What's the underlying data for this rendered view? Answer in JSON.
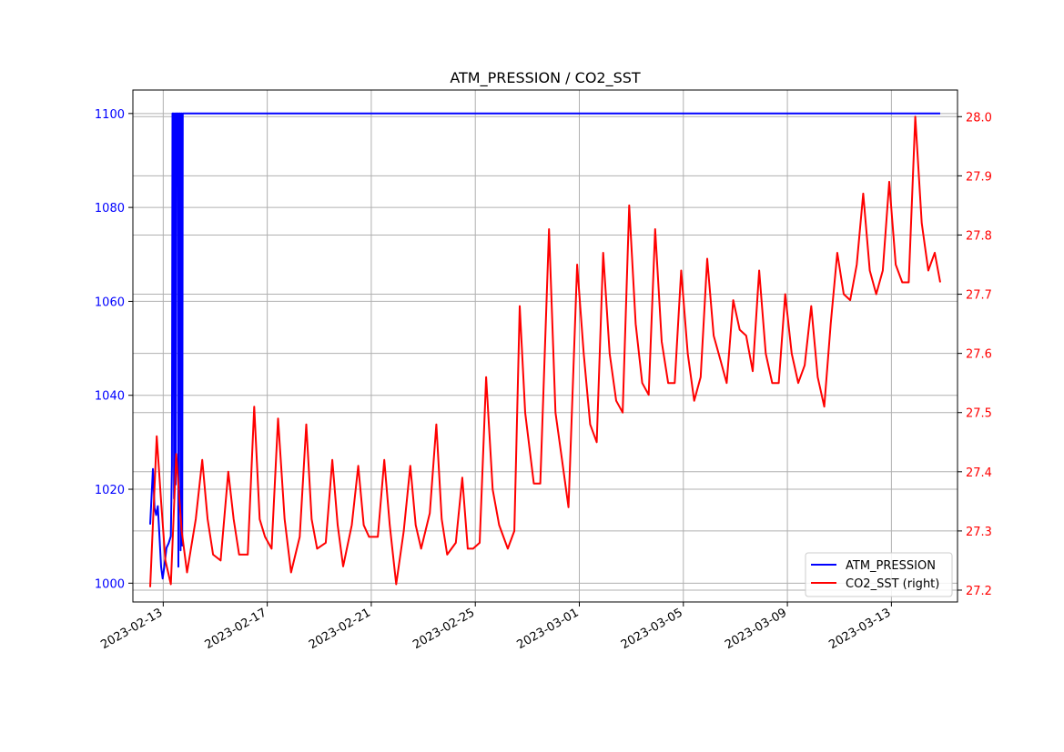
{
  "chart_data": {
    "type": "line",
    "title": "ATM_PRESSION / CO2_SST",
    "xlabel": "",
    "x_ticks": [
      "2023-02-13",
      "2023-02-17",
      "2023-02-21",
      "2023-02-25",
      "2023-03-01",
      "2023-03-05",
      "2023-03-09",
      "2023-03-13"
    ],
    "xlim": [
      "2023-02-11T20:00",
      "2023-03-15T13:00"
    ],
    "grid": true,
    "legend_position": "lower-right",
    "left_axis": {
      "ylim": [
        996,
        1105
      ],
      "ticks": [
        "1000",
        "1020",
        "1040",
        "1060",
        "1080",
        "1100"
      ],
      "color": "#0000ff"
    },
    "right_axis": {
      "ylim": [
        27.18,
        28.045
      ],
      "ticks": [
        "27.2",
        "27.3",
        "27.4",
        "27.5",
        "27.6",
        "27.7",
        "27.8",
        "27.9",
        "28.0"
      ],
      "color": "#ff0000"
    },
    "series": [
      {
        "name": "ATM_PRESSION",
        "axis": "left",
        "color": "#0000ff",
        "points": [
          [
            "2023-02-12T12:00",
            1012.5
          ],
          [
            "2023-02-12T14:30",
            1024.3
          ],
          [
            "2023-02-12T16:00",
            1016.0
          ],
          [
            "2023-02-12T17:30",
            1014.5
          ],
          [
            "2023-02-12T19:00",
            1016.4
          ],
          [
            "2023-02-12T20:30",
            1010.0
          ],
          [
            "2023-02-12T22:00",
            1003.5
          ],
          [
            "2023-02-12T23:30",
            1001.0
          ],
          [
            "2023-02-13T01:00",
            1003.5
          ],
          [
            "2023-02-13T03:00",
            1007.5
          ],
          [
            "2023-02-13T05:00",
            1008.5
          ],
          [
            "2023-02-13T07:00",
            1010.0
          ],
          [
            "2023-02-13T08:00",
            1025.0
          ],
          [
            "2023-02-13T08:30",
            1100.0
          ],
          [
            "2023-02-13T09:30",
            1100.0
          ],
          [
            "2023-02-13T10:00",
            1018.0
          ],
          [
            "2023-02-13T10:30",
            1100.0
          ],
          [
            "2023-02-13T11:00",
            1100.0
          ],
          [
            "2023-02-13T11:30",
            1021.0
          ],
          [
            "2023-02-13T12:00",
            1100.0
          ],
          [
            "2023-02-13T13:30",
            1100.0
          ],
          [
            "2023-02-13T14:00",
            1003.5
          ],
          [
            "2023-02-13T14:30",
            1100.0
          ],
          [
            "2023-02-13T15:30",
            1100.0
          ],
          [
            "2023-02-13T16:00",
            1007.0
          ],
          [
            "2023-02-13T16:30",
            1100.0
          ],
          [
            "2023-02-13T17:00",
            1100.0
          ],
          [
            "2023-02-13T17:30",
            1008.0
          ],
          [
            "2023-02-13T18:00",
            1100.0
          ],
          [
            "2023-03-14T21:00",
            1100.0
          ]
        ]
      },
      {
        "name": "CO2_SST (right)",
        "axis": "right",
        "color": "#ff0000",
        "points": [
          [
            "2023-02-12T12:00",
            27.205
          ],
          [
            "2023-02-12T18:00",
            27.46
          ],
          [
            "2023-02-12T22:00",
            27.35
          ],
          [
            "2023-02-13T02:00",
            27.25
          ],
          [
            "2023-02-13T07:00",
            27.21
          ],
          [
            "2023-02-13T12:00",
            27.43
          ],
          [
            "2023-02-13T17:00",
            27.3
          ],
          [
            "2023-02-13T22:00",
            27.23
          ],
          [
            "2023-02-14T06:00",
            27.32
          ],
          [
            "2023-02-14T12:00",
            27.42
          ],
          [
            "2023-02-14T17:00",
            27.32
          ],
          [
            "2023-02-14T22:00",
            27.26
          ],
          [
            "2023-02-15T05:00",
            27.25
          ],
          [
            "2023-02-15T12:00",
            27.4
          ],
          [
            "2023-02-15T17:00",
            27.32
          ],
          [
            "2023-02-15T22:00",
            27.26
          ],
          [
            "2023-02-16T06:00",
            27.26
          ],
          [
            "2023-02-16T12:00",
            27.51
          ],
          [
            "2023-02-16T17:00",
            27.32
          ],
          [
            "2023-02-16T22:00",
            27.29
          ],
          [
            "2023-02-17T04:00",
            27.27
          ],
          [
            "2023-02-17T10:00",
            27.49
          ],
          [
            "2023-02-17T16:00",
            27.32
          ],
          [
            "2023-02-17T22:00",
            27.23
          ],
          [
            "2023-02-18T06:00",
            27.29
          ],
          [
            "2023-02-18T12:00",
            27.48
          ],
          [
            "2023-02-18T17:00",
            27.32
          ],
          [
            "2023-02-18T22:00",
            27.27
          ],
          [
            "2023-02-19T06:00",
            27.28
          ],
          [
            "2023-02-19T12:00",
            27.42
          ],
          [
            "2023-02-19T17:00",
            27.31
          ],
          [
            "2023-02-19T22:00",
            27.24
          ],
          [
            "2023-02-20T06:00",
            27.31
          ],
          [
            "2023-02-20T12:00",
            27.41
          ],
          [
            "2023-02-20T17:00",
            27.31
          ],
          [
            "2023-02-20T22:00",
            27.29
          ],
          [
            "2023-02-21T06:00",
            27.29
          ],
          [
            "2023-02-21T12:00",
            27.42
          ],
          [
            "2023-02-21T17:00",
            27.31
          ],
          [
            "2023-02-21T23:00",
            27.21
          ],
          [
            "2023-02-22T06:00",
            27.3
          ],
          [
            "2023-02-22T12:00",
            27.41
          ],
          [
            "2023-02-22T17:00",
            27.31
          ],
          [
            "2023-02-22T22:00",
            27.27
          ],
          [
            "2023-02-23T06:00",
            27.33
          ],
          [
            "2023-02-23T12:00",
            27.48
          ],
          [
            "2023-02-23T17:00",
            27.32
          ],
          [
            "2023-02-23T22:00",
            27.26
          ],
          [
            "2023-02-24T06:00",
            27.28
          ],
          [
            "2023-02-24T12:00",
            27.39
          ],
          [
            "2023-02-24T17:00",
            27.27
          ],
          [
            "2023-02-24T22:00",
            27.27
          ],
          [
            "2023-02-25T04:00",
            27.28
          ],
          [
            "2023-02-25T10:00",
            27.56
          ],
          [
            "2023-02-25T16:00",
            27.37
          ],
          [
            "2023-02-25T22:00",
            27.31
          ],
          [
            "2023-02-26T06:00",
            27.27
          ],
          [
            "2023-02-26T12:00",
            27.3
          ],
          [
            "2023-02-26T17:00",
            27.68
          ],
          [
            "2023-02-26T22:00",
            27.5
          ],
          [
            "2023-02-27T06:00",
            27.38
          ],
          [
            "2023-02-27T12:00",
            27.38
          ],
          [
            "2023-02-27T20:00",
            27.81
          ],
          [
            "2023-02-28T02:00",
            27.5
          ],
          [
            "2023-02-28T08:00",
            27.42
          ],
          [
            "2023-02-28T14:00",
            27.34
          ],
          [
            "2023-02-28T22:00",
            27.75
          ],
          [
            "2023-03-01T04:00",
            27.6
          ],
          [
            "2023-03-01T10:00",
            27.48
          ],
          [
            "2023-03-01T16:00",
            27.45
          ],
          [
            "2023-03-01T22:00",
            27.77
          ],
          [
            "2023-03-02T04:00",
            27.6
          ],
          [
            "2023-03-02T10:00",
            27.52
          ],
          [
            "2023-03-02T16:00",
            27.5
          ],
          [
            "2023-03-02T22:00",
            27.85
          ],
          [
            "2023-03-03T04:00",
            27.65
          ],
          [
            "2023-03-03T10:00",
            27.55
          ],
          [
            "2023-03-03T16:00",
            27.53
          ],
          [
            "2023-03-03T22:00",
            27.81
          ],
          [
            "2023-03-04T04:00",
            27.62
          ],
          [
            "2023-03-04T10:00",
            27.55
          ],
          [
            "2023-03-04T16:00",
            27.55
          ],
          [
            "2023-03-04T22:00",
            27.74
          ],
          [
            "2023-03-05T04:00",
            27.6
          ],
          [
            "2023-03-05T10:00",
            27.52
          ],
          [
            "2023-03-05T16:00",
            27.56
          ],
          [
            "2023-03-05T22:00",
            27.76
          ],
          [
            "2023-03-06T04:00",
            27.63
          ],
          [
            "2023-03-06T10:00",
            27.59
          ],
          [
            "2023-03-06T16:00",
            27.55
          ],
          [
            "2023-03-06T22:00",
            27.69
          ],
          [
            "2023-03-07T04:00",
            27.64
          ],
          [
            "2023-03-07T10:00",
            27.63
          ],
          [
            "2023-03-07T16:00",
            27.57
          ],
          [
            "2023-03-07T22:00",
            27.74
          ],
          [
            "2023-03-08T04:00",
            27.6
          ],
          [
            "2023-03-08T10:00",
            27.55
          ],
          [
            "2023-03-08T16:00",
            27.55
          ],
          [
            "2023-03-08T22:00",
            27.7
          ],
          [
            "2023-03-09T04:00",
            27.6
          ],
          [
            "2023-03-09T10:00",
            27.55
          ],
          [
            "2023-03-09T16:00",
            27.58
          ],
          [
            "2023-03-09T22:00",
            27.68
          ],
          [
            "2023-03-10T04:00",
            27.56
          ],
          [
            "2023-03-10T10:00",
            27.51
          ],
          [
            "2023-03-10T16:00",
            27.65
          ],
          [
            "2023-03-10T22:00",
            27.77
          ],
          [
            "2023-03-11T04:00",
            27.7
          ],
          [
            "2023-03-11T10:00",
            27.69
          ],
          [
            "2023-03-11T16:00",
            27.75
          ],
          [
            "2023-03-11T22:00",
            27.87
          ],
          [
            "2023-03-12T04:00",
            27.74
          ],
          [
            "2023-03-12T10:00",
            27.7
          ],
          [
            "2023-03-12T16:00",
            27.74
          ],
          [
            "2023-03-12T22:00",
            27.89
          ],
          [
            "2023-03-13T04:00",
            27.75
          ],
          [
            "2023-03-13T10:00",
            27.72
          ],
          [
            "2023-03-13T16:00",
            27.72
          ],
          [
            "2023-03-13T22:00",
            28.0
          ],
          [
            "2023-03-14T04:00",
            27.82
          ],
          [
            "2023-03-14T10:00",
            27.74
          ],
          [
            "2023-03-14T16:00",
            27.77
          ],
          [
            "2023-03-14T21:00",
            27.72
          ]
        ]
      }
    ]
  }
}
